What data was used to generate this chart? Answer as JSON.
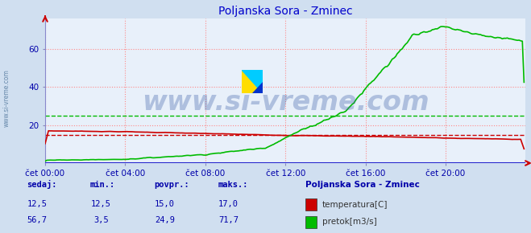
{
  "title": "Poljanska Sora - Zminec",
  "title_color": "#0000cc",
  "bg_color": "#d0dff0",
  "plot_bg_color": "#e8f0fa",
  "grid_color_h": "#ff8888",
  "grid_color_v": "#ff8888",
  "border_color": "#8888cc",
  "xlabel_color": "#0000aa",
  "ylabel_color": "#0000aa",
  "x_tick_labels": [
    "čet 00:00",
    "čet 04:00",
    "čet 08:00",
    "čet 12:00",
    "čet 16:00",
    "čet 20:00"
  ],
  "x_tick_positions": [
    0,
    48,
    96,
    144,
    192,
    240
  ],
  "ylim": [
    0,
    76
  ],
  "y_ticks": [
    20,
    40,
    60
  ],
  "xlim": [
    0,
    288
  ],
  "temp_color": "#cc0000",
  "flow_color": "#00bb00",
  "avg_temp": 15.0,
  "avg_flow": 24.9,
  "watermark": "www.si-vreme.com",
  "watermark_color": "#4466aa",
  "watermark_alpha": 0.35,
  "watermark_fontsize": 24,
  "legend_title": "Poljanska Sora - Zminec",
  "legend_items": [
    "temperatura[C]",
    "pretok[m3/s]"
  ],
  "legend_colors": [
    "#cc0000",
    "#00bb00"
  ],
  "table_headers": [
    "sedaj:",
    "min.:",
    "povpr.:",
    "maks.:"
  ],
  "table_temp": [
    "12,5",
    "12,5",
    "15,0",
    "17,0"
  ],
  "table_flow": [
    "56,7",
    "3,5",
    "24,9",
    "71,7"
  ],
  "table_color": "#0000aa",
  "n_points": 288
}
